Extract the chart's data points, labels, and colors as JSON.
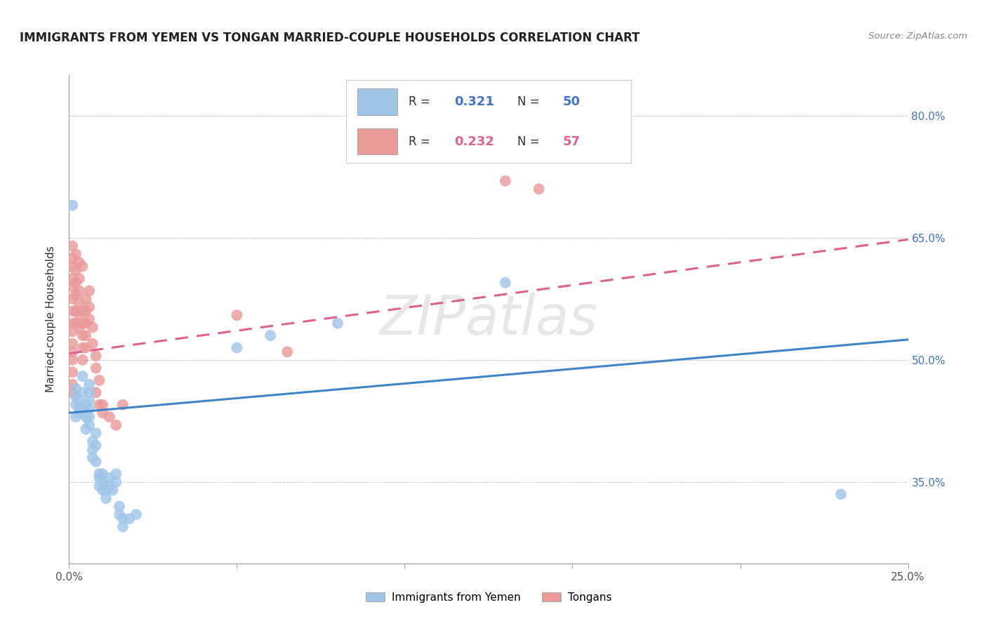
{
  "title": "IMMIGRANTS FROM YEMEN VS TONGAN MARRIED-COUPLE HOUSEHOLDS CORRELATION CHART",
  "source": "Source: ZipAtlas.com",
  "ylabel": "Married-couple Households",
  "xlabel_blue": "Immigrants from Yemen",
  "xlabel_pink": "Tongans",
  "xlim": [
    0.0,
    0.25
  ],
  "ylim": [
    0.25,
    0.85
  ],
  "xticks": [
    0.0,
    0.05,
    0.1,
    0.15,
    0.2,
    0.25
  ],
  "xticklabels": [
    "0.0%",
    "",
    "",
    "",
    "",
    "25.0%"
  ],
  "yticks_right": [
    0.35,
    0.5,
    0.65,
    0.8
  ],
  "yticklabels_right": [
    "35.0%",
    "50.0%",
    "65.0%",
    "80.0%"
  ],
  "legend_blue_r": "0.321",
  "legend_blue_n": "50",
  "legend_pink_r": "0.232",
  "legend_pink_n": "57",
  "blue_color": "#9fc5e8",
  "pink_color": "#ea9999",
  "blue_line_color": "#3d85c8",
  "pink_line_color": "#e06090",
  "watermark": "ZIPatlas",
  "blue_scatter": [
    [
      0.001,
      0.69
    ],
    [
      0.002,
      0.445
    ],
    [
      0.002,
      0.455
    ],
    [
      0.002,
      0.465
    ],
    [
      0.002,
      0.43
    ],
    [
      0.003,
      0.44
    ],
    [
      0.003,
      0.45
    ],
    [
      0.003,
      0.435
    ],
    [
      0.004,
      0.48
    ],
    [
      0.004,
      0.46
    ],
    [
      0.004,
      0.44
    ],
    [
      0.005,
      0.43
    ],
    [
      0.005,
      0.445
    ],
    [
      0.005,
      0.415
    ],
    [
      0.006,
      0.46
    ],
    [
      0.006,
      0.47
    ],
    [
      0.006,
      0.45
    ],
    [
      0.006,
      0.44
    ],
    [
      0.006,
      0.43
    ],
    [
      0.006,
      0.42
    ],
    [
      0.007,
      0.39
    ],
    [
      0.007,
      0.4
    ],
    [
      0.007,
      0.38
    ],
    [
      0.008,
      0.41
    ],
    [
      0.008,
      0.395
    ],
    [
      0.008,
      0.375
    ],
    [
      0.009,
      0.36
    ],
    [
      0.009,
      0.345
    ],
    [
      0.009,
      0.355
    ],
    [
      0.01,
      0.35
    ],
    [
      0.01,
      0.34
    ],
    [
      0.01,
      0.36
    ],
    [
      0.011,
      0.34
    ],
    [
      0.011,
      0.33
    ],
    [
      0.012,
      0.345
    ],
    [
      0.012,
      0.355
    ],
    [
      0.013,
      0.34
    ],
    [
      0.014,
      0.36
    ],
    [
      0.014,
      0.35
    ],
    [
      0.015,
      0.31
    ],
    [
      0.015,
      0.32
    ],
    [
      0.016,
      0.295
    ],
    [
      0.016,
      0.305
    ],
    [
      0.018,
      0.305
    ],
    [
      0.02,
      0.31
    ],
    [
      0.05,
      0.515
    ],
    [
      0.06,
      0.53
    ],
    [
      0.08,
      0.545
    ],
    [
      0.13,
      0.595
    ],
    [
      0.23,
      0.335
    ]
  ],
  "pink_scatter": [
    [
      0.001,
      0.64
    ],
    [
      0.001,
      0.625
    ],
    [
      0.001,
      0.615
    ],
    [
      0.001,
      0.6
    ],
    [
      0.001,
      0.59
    ],
    [
      0.001,
      0.575
    ],
    [
      0.001,
      0.56
    ],
    [
      0.001,
      0.545
    ],
    [
      0.001,
      0.535
    ],
    [
      0.001,
      0.52
    ],
    [
      0.001,
      0.51
    ],
    [
      0.001,
      0.5
    ],
    [
      0.001,
      0.485
    ],
    [
      0.001,
      0.47
    ],
    [
      0.001,
      0.46
    ],
    [
      0.002,
      0.63
    ],
    [
      0.002,
      0.61
    ],
    [
      0.002,
      0.595
    ],
    [
      0.002,
      0.58
    ],
    [
      0.002,
      0.56
    ],
    [
      0.002,
      0.545
    ],
    [
      0.003,
      0.62
    ],
    [
      0.003,
      0.6
    ],
    [
      0.003,
      0.585
    ],
    [
      0.003,
      0.57
    ],
    [
      0.003,
      0.555
    ],
    [
      0.003,
      0.54
    ],
    [
      0.004,
      0.615
    ],
    [
      0.004,
      0.56
    ],
    [
      0.004,
      0.545
    ],
    [
      0.004,
      0.53
    ],
    [
      0.004,
      0.515
    ],
    [
      0.004,
      0.5
    ],
    [
      0.005,
      0.575
    ],
    [
      0.005,
      0.56
    ],
    [
      0.005,
      0.545
    ],
    [
      0.005,
      0.53
    ],
    [
      0.005,
      0.515
    ],
    [
      0.006,
      0.585
    ],
    [
      0.006,
      0.565
    ],
    [
      0.006,
      0.55
    ],
    [
      0.007,
      0.54
    ],
    [
      0.007,
      0.52
    ],
    [
      0.008,
      0.505
    ],
    [
      0.008,
      0.49
    ],
    [
      0.008,
      0.46
    ],
    [
      0.009,
      0.475
    ],
    [
      0.009,
      0.445
    ],
    [
      0.01,
      0.445
    ],
    [
      0.01,
      0.435
    ],
    [
      0.012,
      0.43
    ],
    [
      0.014,
      0.42
    ],
    [
      0.016,
      0.445
    ],
    [
      0.05,
      0.555
    ],
    [
      0.065,
      0.51
    ],
    [
      0.13,
      0.72
    ],
    [
      0.14,
      0.71
    ]
  ],
  "blue_trendline": [
    [
      0.0,
      0.435
    ],
    [
      0.25,
      0.525
    ]
  ],
  "pink_trendline": [
    [
      0.0,
      0.508
    ],
    [
      0.25,
      0.648
    ]
  ]
}
